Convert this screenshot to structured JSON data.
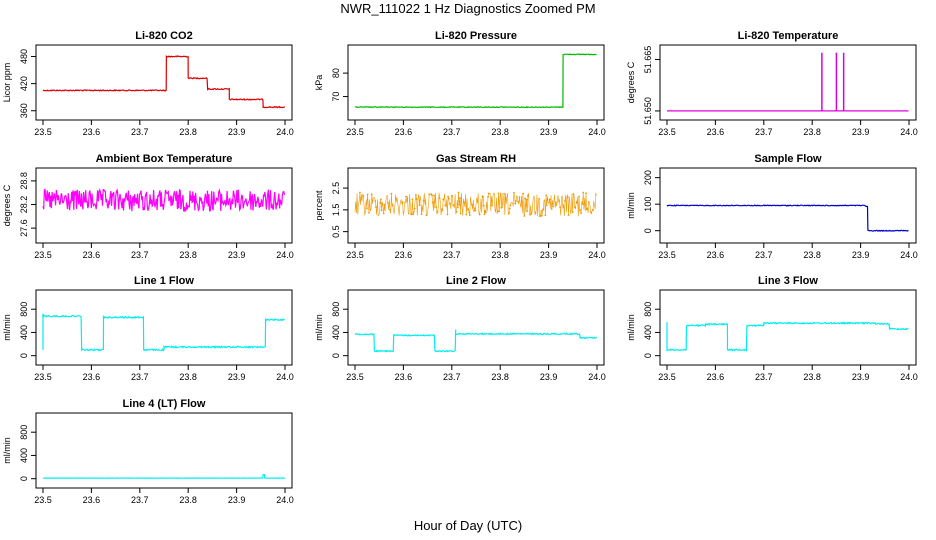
{
  "page": {
    "title": "NWR_111022  1 Hz Diagnostics Zoomed PM",
    "xlabel": "Hour of Day (UTC)"
  },
  "chart_data": [
    {
      "type": "line",
      "title": "Li-820 CO2",
      "ylabel": "Licor ppm",
      "color": "#dd0000",
      "xlim": [
        23.5,
        24.0
      ],
      "ylim": [
        355,
        490
      ],
      "xticks": [
        "23.5",
        "23.6",
        "23.7",
        "23.8",
        "23.9",
        "24.0"
      ],
      "yticks": [
        "360",
        "420",
        "480"
      ],
      "noise": 1.2,
      "segments": [
        [
          23.5,
          23.755,
          405
        ],
        [
          23.755,
          23.755,
          480
        ],
        [
          23.755,
          23.8,
          480
        ],
        [
          23.8,
          23.8,
          432
        ],
        [
          23.8,
          23.84,
          432
        ],
        [
          23.84,
          23.84,
          408
        ],
        [
          23.84,
          23.885,
          408
        ],
        [
          23.885,
          23.885,
          385
        ],
        [
          23.885,
          23.955,
          385
        ],
        [
          23.955,
          23.955,
          368
        ],
        [
          23.955,
          24.0,
          368
        ]
      ]
    },
    {
      "type": "line",
      "title": "Li-820 Pressure",
      "ylabel": "kPa",
      "color": "#00bb00",
      "xlim": [
        23.5,
        24.0
      ],
      "ylim": [
        63,
        89
      ],
      "xticks": [
        "23.5",
        "23.6",
        "23.7",
        "23.8",
        "23.9",
        "24.0"
      ],
      "yticks": [
        "70",
        "80"
      ],
      "noise": 0.15,
      "segments": [
        [
          23.5,
          23.93,
          65.5
        ],
        [
          23.93,
          23.96,
          88
        ],
        [
          23.96,
          24.0,
          88
        ]
      ]
    },
    {
      "type": "line",
      "title": "Li-820 Temperature",
      "ylabel": "degrees C",
      "color": "#dd00dd",
      "xlim": [
        23.5,
        24.0
      ],
      "ylim": [
        51.6494,
        51.6672
      ],
      "xticks": [
        "23.5",
        "23.6",
        "23.7",
        "23.8",
        "23.9",
        "24.0"
      ],
      "yticks": [
        "51.650",
        "51.665"
      ],
      "noise": 0,
      "segments": [
        [
          23.5,
          24.0,
          51.65
        ]
      ],
      "spikes": [
        [
          23.82,
          51.667
        ],
        [
          23.85,
          51.667
        ],
        [
          23.865,
          51.667
        ]
      ]
    },
    {
      "type": "line",
      "title": "Ambient Box Temperature",
      "ylabel": "degrees C",
      "color": "#ff00ff",
      "xlim": [
        23.5,
        24.0
      ],
      "ylim": [
        27.4,
        28.95
      ],
      "xticks": [
        "23.5",
        "23.6",
        "23.7",
        "23.8",
        "23.9",
        "24.0"
      ],
      "yticks": [
        "27.6",
        "28.2",
        "28.8"
      ],
      "noise": 0.28,
      "segments": [
        [
          23.5,
          24.0,
          28.3
        ]
      ]
    },
    {
      "type": "scatter",
      "title": "Gas Stream RH",
      "ylabel": "percent",
      "color": "#ee9900",
      "xlim": [
        23.5,
        24.0
      ],
      "ylim": [
        0.3,
        3.1
      ],
      "xticks": [
        "23.5",
        "23.6",
        "23.7",
        "23.8",
        "23.9",
        "24.0"
      ],
      "yticks": [
        "0.5",
        "1.5",
        "2.5"
      ],
      "noise": 0.55,
      "segments": [
        [
          23.5,
          24.0,
          1.75
        ]
      ]
    },
    {
      "type": "line",
      "title": "Sample Flow",
      "ylabel": "ml/min",
      "color": "#0000cc",
      "xlim": [
        23.5,
        24.0
      ],
      "ylim": [
        -20,
        210
      ],
      "xticks": [
        "23.5",
        "23.6",
        "23.7",
        "23.8",
        "23.9",
        "24.0"
      ],
      "yticks": [
        "0",
        "100",
        "200"
      ],
      "noise": 1.5,
      "segments": [
        [
          23.5,
          23.91,
          95
        ],
        [
          23.91,
          23.915,
          92
        ],
        [
          23.915,
          23.915,
          0
        ],
        [
          23.915,
          24.0,
          0
        ]
      ]
    },
    {
      "type": "line",
      "title": "Line 1 Flow",
      "ylabel": "ml/min",
      "color": "#00eeee",
      "xlim": [
        23.5,
        24.0
      ],
      "ylim": [
        -40,
        1010
      ],
      "xticks": [
        "23.5",
        "23.6",
        "23.7",
        "23.8",
        "23.9",
        "24.0"
      ],
      "yticks": [
        "0",
        "400",
        "800"
      ],
      "noise": 12,
      "segments": [
        [
          23.5,
          23.5,
          100
        ],
        [
          23.5,
          23.502,
          700
        ],
        [
          23.502,
          23.58,
          680
        ],
        [
          23.58,
          23.58,
          100
        ],
        [
          23.58,
          23.625,
          100
        ],
        [
          23.625,
          23.625,
          690
        ],
        [
          23.625,
          23.708,
          660
        ],
        [
          23.708,
          23.708,
          100
        ],
        [
          23.708,
          23.75,
          100
        ],
        [
          23.75,
          23.955,
          150
        ],
        [
          23.955,
          23.96,
          150
        ],
        [
          23.96,
          23.96,
          620
        ],
        [
          23.96,
          24.0,
          620
        ]
      ]
    },
    {
      "type": "line",
      "title": "Line 2 Flow",
      "ylabel": "ml/min",
      "color": "#00eeee",
      "xlim": [
        23.5,
        24.0
      ],
      "ylim": [
        -40,
        1010
      ],
      "xticks": [
        "23.5",
        "23.6",
        "23.7",
        "23.8",
        "23.9",
        "24.0"
      ],
      "yticks": [
        "0",
        "400",
        "800"
      ],
      "noise": 10,
      "segments": [
        [
          23.5,
          23.54,
          370
        ],
        [
          23.54,
          23.54,
          80
        ],
        [
          23.54,
          23.58,
          80
        ],
        [
          23.58,
          23.58,
          370
        ],
        [
          23.58,
          23.665,
          350
        ],
        [
          23.665,
          23.665,
          80
        ],
        [
          23.665,
          23.708,
          80
        ],
        [
          23.708,
          23.708,
          450
        ],
        [
          23.708,
          23.965,
          375
        ],
        [
          23.965,
          24.0,
          310
        ]
      ]
    },
    {
      "type": "line",
      "title": "Line 3 Flow",
      "ylabel": "ml/min",
      "color": "#00eeee",
      "xlim": [
        23.5,
        24.0
      ],
      "ylim": [
        -40,
        1010
      ],
      "xticks": [
        "23.5",
        "23.6",
        "23.7",
        "23.8",
        "23.9",
        "24.0"
      ],
      "yticks": [
        "0",
        "400",
        "800"
      ],
      "noise": 11,
      "segments": [
        [
          23.5,
          23.5,
          580
        ],
        [
          23.5,
          23.502,
          100
        ],
        [
          23.502,
          23.54,
          100
        ],
        [
          23.54,
          23.54,
          500
        ],
        [
          23.54,
          23.58,
          520
        ],
        [
          23.58,
          23.625,
          540
        ],
        [
          23.625,
          23.625,
          100
        ],
        [
          23.625,
          23.665,
          100
        ],
        [
          23.665,
          23.665,
          500
        ],
        [
          23.665,
          23.7,
          520
        ],
        [
          23.7,
          23.93,
          560
        ],
        [
          23.93,
          23.96,
          550
        ],
        [
          23.96,
          24.0,
          460
        ]
      ]
    },
    {
      "type": "line",
      "title": "Line 4 (LT) Flow",
      "ylabel": "ml/min",
      "color": "#00eeee",
      "xlim": [
        23.5,
        24.0
      ],
      "ylim": [
        -40,
        1010
      ],
      "xticks": [
        "23.5",
        "23.6",
        "23.7",
        "23.8",
        "23.9",
        "24.0"
      ],
      "yticks": [
        "0",
        "400",
        "800"
      ],
      "noise": 2,
      "segments": [
        [
          23.5,
          23.955,
          10
        ],
        [
          23.955,
          23.958,
          70
        ],
        [
          23.958,
          24.0,
          10
        ]
      ]
    }
  ]
}
